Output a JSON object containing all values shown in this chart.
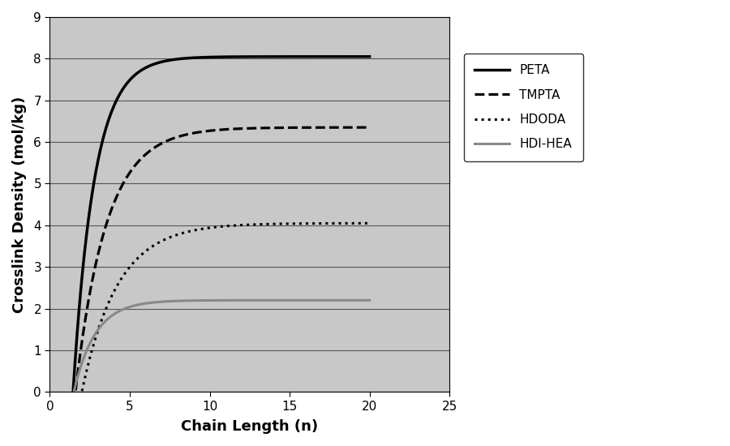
{
  "title": "",
  "xlabel": "Chain Length (n)",
  "ylabel": "Crosslink Density (mol/kg)",
  "xlim": [
    0,
    25
  ],
  "ylim": [
    0,
    9
  ],
  "xticks": [
    0,
    5,
    10,
    15,
    20,
    25
  ],
  "yticks": [
    0,
    1,
    2,
    3,
    4,
    5,
    6,
    7,
    8,
    9
  ],
  "plot_background": "#c8c8c8",
  "outer_background": "#ffffff",
  "series": [
    {
      "label": "PETA",
      "color": "#000000",
      "linestyle": "solid",
      "linewidth": 2.5,
      "A": 8.05,
      "k": 0.75,
      "x0": 1.45
    },
    {
      "label": "TMPTA",
      "color": "#000000",
      "linestyle": "dashed",
      "linewidth": 2.3,
      "A": 6.35,
      "k": 0.52,
      "x0": 1.6
    },
    {
      "label": "HDODA",
      "color": "#000000",
      "linestyle": "dotted",
      "linewidth": 2.2,
      "A": 4.05,
      "k": 0.45,
      "x0": 2.0
    },
    {
      "label": "HDI-HEA",
      "color": "#888888",
      "linestyle": "solid",
      "linewidth": 2.2,
      "A": 2.2,
      "k": 0.75,
      "x0": 1.5
    }
  ]
}
